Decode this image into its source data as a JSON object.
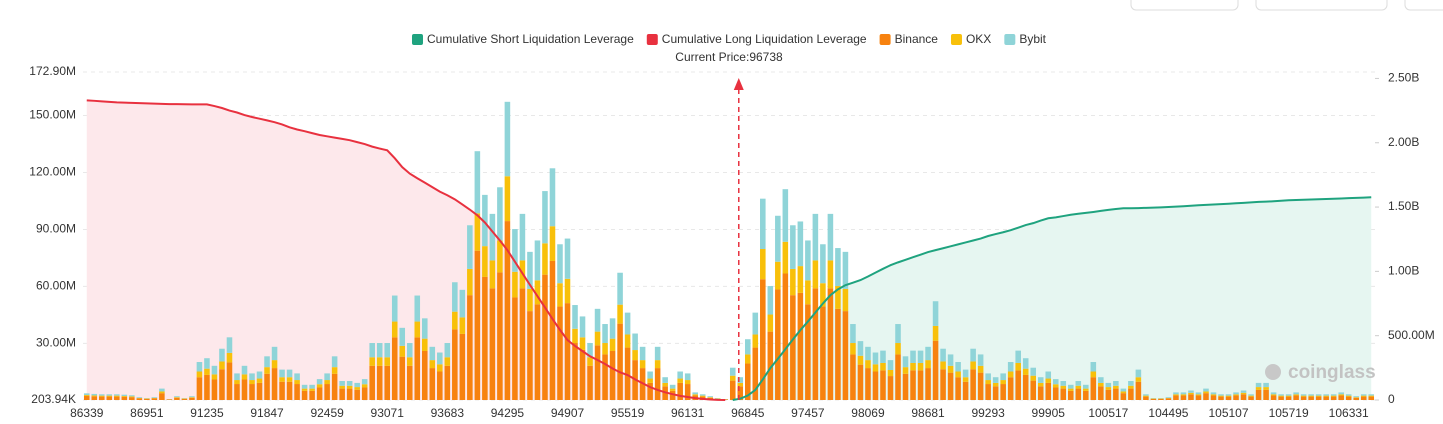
{
  "chart_data": {
    "type": "bar",
    "annotation": "Current Price:96738",
    "current_price": 96738,
    "watermark": "coinglass",
    "categories": [
      86339,
      null,
      null,
      null,
      null,
      null,
      null,
      null,
      86951,
      null,
      null,
      null,
      null,
      null,
      null,
      null,
      91235,
      null,
      null,
      null,
      null,
      null,
      null,
      null,
      91847,
      null,
      null,
      null,
      null,
      null,
      null,
      null,
      92459,
      null,
      null,
      null,
      null,
      null,
      null,
      null,
      93071,
      null,
      null,
      null,
      null,
      null,
      null,
      null,
      93683,
      null,
      null,
      null,
      null,
      null,
      null,
      null,
      94295,
      null,
      null,
      null,
      null,
      null,
      null,
      null,
      94907,
      null,
      null,
      null,
      null,
      null,
      null,
      null,
      95519,
      null,
      null,
      null,
      null,
      null,
      null,
      null,
      96131,
      null,
      null,
      null,
      null,
      null,
      null,
      null,
      96845,
      null,
      null,
      null,
      null,
      null,
      null,
      null,
      97457,
      null,
      null,
      null,
      null,
      null,
      null,
      null,
      98069,
      null,
      null,
      null,
      null,
      null,
      null,
      null,
      98681,
      null,
      null,
      null,
      null,
      null,
      null,
      null,
      99293,
      null,
      null,
      null,
      null,
      null,
      null,
      null,
      99905,
      null,
      null,
      null,
      null,
      null,
      null,
      null,
      100517,
      null,
      null,
      null,
      null,
      null,
      null,
      null,
      104495,
      null,
      null,
      null,
      null,
      null,
      null,
      null,
      105107,
      null,
      null,
      null,
      null,
      null,
      null,
      null,
      105719,
      null,
      null,
      null,
      null,
      null,
      null,
      null,
      106331,
      null,
      null,
      null
    ],
    "series": [
      {
        "name": "Cumulative Short Liquidation Leverage",
        "type": "line",
        "axis": "y2",
        "color": "#1fa37f",
        "area": "#e6f6f1",
        "values": [
          null,
          null,
          null,
          null,
          null,
          null,
          null,
          null,
          null,
          null,
          null,
          null,
          null,
          null,
          null,
          null,
          null,
          null,
          null,
          null,
          null,
          null,
          null,
          null,
          null,
          null,
          null,
          null,
          null,
          null,
          null,
          null,
          null,
          null,
          null,
          null,
          null,
          null,
          null,
          null,
          null,
          null,
          null,
          null,
          null,
          null,
          null,
          null,
          null,
          null,
          null,
          null,
          null,
          null,
          null,
          null,
          null,
          null,
          null,
          null,
          null,
          null,
          null,
          null,
          null,
          null,
          null,
          null,
          null,
          null,
          null,
          null,
          null,
          null,
          null,
          null,
          null,
          null,
          null,
          null,
          null,
          null,
          null,
          null,
          null,
          null,
          0,
          10,
          35,
          78,
          160,
          248,
          320,
          395,
          470,
          543,
          610,
          680,
          750,
          815,
          860,
          893,
          912,
          932,
          960,
          990,
          1020,
          1048,
          1070,
          1090,
          1110,
          1130,
          1150,
          1165,
          1180,
          1195,
          1210,
          1225,
          1240,
          1255,
          1275,
          1290,
          1304,
          1320,
          1340,
          1360,
          1375,
          1395,
          1413,
          1420,
          1430,
          1440,
          1448,
          1455,
          1462,
          1470,
          1478,
          1485,
          1491,
          1491,
          1492,
          1494,
          1496,
          1498,
          1500,
          1503,
          1506,
          1510,
          1514,
          1517,
          1520,
          1523,
          1526,
          1530,
          1533,
          1536,
          1540,
          1542,
          1545,
          1549,
          1553,
          1555,
          1557,
          1559,
          1561,
          1563,
          1565,
          1567,
          1569,
          1571,
          1573,
          1576
        ]
      },
      {
        "name": "Cumulative Long Liquidation Leverage",
        "type": "line",
        "axis": "y2",
        "color": "#e8313f",
        "area": "#fde8eb",
        "values": [
          2329,
          2326,
          2322,
          2318,
          2314,
          2312,
          2310,
          2308,
          2306,
          2304,
          2302,
          2300,
          2300,
          2299,
          2298,
          2298,
          2298,
          2285,
          2270,
          2250,
          2235,
          2215,
          2200,
          2187,
          2174,
          2160,
          2142,
          2120,
          2103,
          2090,
          2075,
          2060,
          2050,
          2040,
          2030,
          2020,
          2005,
          1990,
          1970,
          1955,
          1941,
          1880,
          1810,
          1760,
          1724,
          1690,
          1655,
          1620,
          1592,
          1560,
          1520,
          1480,
          1436,
          1380,
          1310,
          1240,
          1165,
          1075,
          985,
          895,
          807,
          720,
          630,
          545,
          466,
          420,
          380,
          340,
          311,
          280,
          245,
          215,
          194,
          160,
          130,
          100,
          78,
          60,
          45,
          32,
          23,
          15,
          9,
          4,
          1,
          0,
          null,
          null,
          null,
          null,
          null,
          null,
          null,
          null,
          null,
          null,
          null,
          null,
          null,
          null,
          null,
          null,
          null,
          null,
          null,
          null,
          null,
          null,
          null,
          null,
          null,
          null,
          null,
          null,
          null,
          null,
          null,
          null,
          null,
          null,
          null,
          null,
          null,
          null,
          null,
          null,
          null,
          null,
          null,
          null,
          null,
          null,
          null,
          null,
          null,
          null,
          null,
          null,
          null,
          null,
          null,
          null,
          null,
          null,
          null,
          null,
          null,
          null,
          null,
          null,
          null,
          null,
          null,
          null,
          null,
          null,
          null,
          null,
          null,
          null,
          null,
          null,
          null,
          null,
          null,
          null,
          null,
          null,
          null,
          null,
          null,
          null
        ]
      },
      {
        "name": "Binance",
        "type": "bar",
        "color": "#f7820f",
        "values": [
          2.1,
          1.9,
          1.8,
          1.8,
          1.8,
          1.7,
          1.5,
          0.9,
          0.6,
          0.9,
          3.6,
          0.3,
          1.2,
          0.6,
          1.2,
          12,
          13.2,
          10.8,
          16.2,
          19.8,
          8.4,
          10.8,
          8.4,
          9,
          13.8,
          16.8,
          9.6,
          9.6,
          8.4,
          4.8,
          4.8,
          6.6,
          8.4,
          13.8,
          6,
          6,
          5.4,
          6.6,
          18,
          18,
          18,
          33,
          22.8,
          18,
          33,
          25.8,
          16.8,
          15,
          18,
          37.2,
          34.8,
          55.2,
          78.6,
          64.8,
          58.8,
          67.2,
          94.2,
          54,
          58.8,
          46.8,
          50.4,
          66,
          73.2,
          49.2,
          51,
          30,
          26.4,
          18,
          28.8,
          24,
          25.8,
          40.2,
          27.6,
          21,
          16.8,
          9,
          16.8,
          7.2,
          4.8,
          9,
          8.4,
          2.4,
          1.8,
          1.2,
          0.6,
          0.3,
          10.2,
          7.2,
          19.2,
          27.6,
          63.6,
          36,
          58.2,
          66.6,
          55.2,
          56.4,
          50.4,
          58.8,
          49.2,
          58.8,
          48,
          46.8,
          24,
          18.6,
          16.8,
          15,
          15.6,
          12.6,
          24,
          13.8,
          15.6,
          15.6,
          16.8,
          31.2,
          16.2,
          14.4,
          12,
          9.6,
          16.2,
          14.4,
          8.4,
          7.2,
          8.4,
          12,
          15.6,
          13.2,
          10.2,
          7.2,
          9,
          6.6,
          6,
          4.8,
          6,
          4.8,
          12,
          7.2,
          5.4,
          6,
          3.6,
          6,
          9.6,
          1.8,
          0.6,
          0.6,
          0.9,
          2.4,
          2.4,
          3,
          2.4,
          3.6,
          2.4,
          1.8,
          1.8,
          2.4,
          3,
          1.8,
          5.4,
          5.4,
          2.4,
          1.8,
          1.8,
          2.4,
          1.8,
          1.8,
          1.8,
          1.8,
          1.8,
          2.4,
          1.8,
          1.2,
          1.8,
          1.8
        ]
      },
      {
        "name": "OKX",
        "type": "bar",
        "color": "#f8c00a",
        "values": [
          0.5,
          0.5,
          0.5,
          0.5,
          0.5,
          0.4,
          0.4,
          0.2,
          0.2,
          0.2,
          0.9,
          0.1,
          0.3,
          0.2,
          0.3,
          3,
          3.3,
          2.7,
          4.1,
          5,
          2.1,
          2.7,
          2.1,
          2.3,
          3.5,
          4.2,
          2.4,
          2.4,
          2.1,
          1.2,
          1.2,
          1.7,
          2.1,
          3.5,
          1.5,
          1.5,
          1.4,
          1.7,
          4.5,
          4.5,
          4.5,
          8.3,
          5.7,
          4.5,
          8.3,
          6.5,
          4.2,
          3.8,
          4.5,
          9.3,
          8.7,
          13.8,
          19.7,
          16.2,
          14.7,
          16.8,
          23.6,
          13.5,
          14.7,
          11.7,
          12.6,
          16.5,
          18.3,
          12.3,
          12.8,
          7.5,
          6.6,
          4.5,
          7.2,
          6,
          6.5,
          10,
          6.9,
          5.3,
          4.2,
          2.3,
          4.2,
          1.8,
          1.2,
          2.3,
          2.1,
          0.6,
          0.5,
          0.3,
          0.2,
          0.1,
          2.6,
          1.8,
          4.8,
          6.9,
          15.9,
          9,
          14.6,
          16.7,
          13.8,
          14.1,
          12.6,
          14.7,
          12.3,
          14.7,
          12,
          11.7,
          6,
          4.7,
          4.2,
          3.8,
          3.9,
          3.2,
          6,
          3.5,
          3.9,
          3.9,
          4.2,
          7.8,
          4.1,
          3.6,
          3,
          2.4,
          4.1,
          3.6,
          2.1,
          1.8,
          2.1,
          3,
          3.9,
          3.3,
          2.6,
          1.8,
          2.3,
          1.7,
          1.5,
          1.2,
          1.5,
          1.2,
          3,
          1.8,
          1.4,
          1.5,
          0.9,
          1.5,
          2.4,
          0.5,
          0.2,
          0.2,
          0.2,
          0.6,
          0.6,
          0.8,
          0.6,
          0.9,
          0.6,
          0.5,
          0.5,
          0.6,
          0.8,
          0.5,
          1.4,
          1.4,
          0.6,
          0.5,
          0.5,
          0.6,
          0.5,
          0.5,
          0.5,
          0.5,
          0.5,
          0.6,
          0.5,
          0.3,
          0.5,
          0.5
        ]
      },
      {
        "name": "Bybit",
        "type": "bar",
        "color": "#8fd4d8",
        "values": [
          0.9,
          0.8,
          0.7,
          0.7,
          0.7,
          0.7,
          0.6,
          0.4,
          0.2,
          0.4,
          1.5,
          0.1,
          0.5,
          0.2,
          0.5,
          5,
          5.5,
          4.5,
          6.7,
          8.2,
          3.5,
          4.5,
          3.5,
          3.7,
          5.7,
          7,
          4,
          4,
          3.5,
          2,
          2,
          2.7,
          3.5,
          5.7,
          2.5,
          2.5,
          2.2,
          2.7,
          7.5,
          7.5,
          7.5,
          13.7,
          9.5,
          7.5,
          13.7,
          10.7,
          7,
          6.2,
          7.5,
          15.5,
          14.5,
          23,
          32.7,
          27,
          24.5,
          28,
          39.2,
          22.5,
          24.5,
          19.5,
          21,
          27.5,
          30.5,
          20.5,
          21.2,
          12.5,
          11,
          7.5,
          12,
          10,
          10.7,
          16.8,
          11.5,
          8.7,
          7,
          3.7,
          7,
          3,
          2,
          3.7,
          3.5,
          1,
          0.7,
          0.5,
          0.2,
          0.1,
          4.2,
          3,
          8,
          11.5,
          26.5,
          15,
          24.2,
          27.7,
          23,
          23.5,
          21,
          24.5,
          20.5,
          24.5,
          20,
          19.5,
          10,
          7.7,
          7,
          6.2,
          6.5,
          5.2,
          10,
          5.7,
          6.5,
          6.5,
          7,
          13,
          6.7,
          6,
          5,
          4,
          6.7,
          6,
          3.5,
          3,
          3.5,
          5,
          6.5,
          5.5,
          4.2,
          3,
          3.7,
          2.7,
          2.5,
          2,
          2.5,
          2,
          5,
          3,
          2.2,
          2.5,
          1.5,
          2.5,
          4,
          0.7,
          0.2,
          0.2,
          0.4,
          1,
          1,
          1.2,
          1,
          1.5,
          1,
          0.7,
          0.7,
          1,
          1.2,
          0.7,
          2.2,
          2.2,
          1,
          0.7,
          0.7,
          1,
          0.7,
          0.7,
          0.7,
          0.7,
          0.7,
          1,
          0.7,
          0.5,
          0.7,
          0.7
        ]
      }
    ],
    "ylim": [
      0.20394,
      172.9
    ],
    "yticks": [
      {
        "value": 0.20394,
        "label": "203.94K"
      },
      {
        "value": 30,
        "label": "30.00M"
      },
      {
        "value": 60,
        "label": "60.00M"
      },
      {
        "value": 90,
        "label": "90.00M"
      },
      {
        "value": 120,
        "label": "120.00M"
      },
      {
        "value": 150,
        "label": "150.00M"
      },
      {
        "value": 172.9,
        "label": "172.90M"
      }
    ],
    "y2lim": [
      0,
      2550
    ],
    "y2ticks": [
      0,
      {
        "value": 500,
        "label": "500.00M"
      },
      {
        "value": 1000,
        "label": "1.00B"
      },
      {
        "value": 1500,
        "label": "1.50B"
      },
      {
        "value": 2000,
        "label": "2.00B"
      },
      {
        "value": 2500,
        "label": "2.50B"
      }
    ],
    "grid": true
  }
}
